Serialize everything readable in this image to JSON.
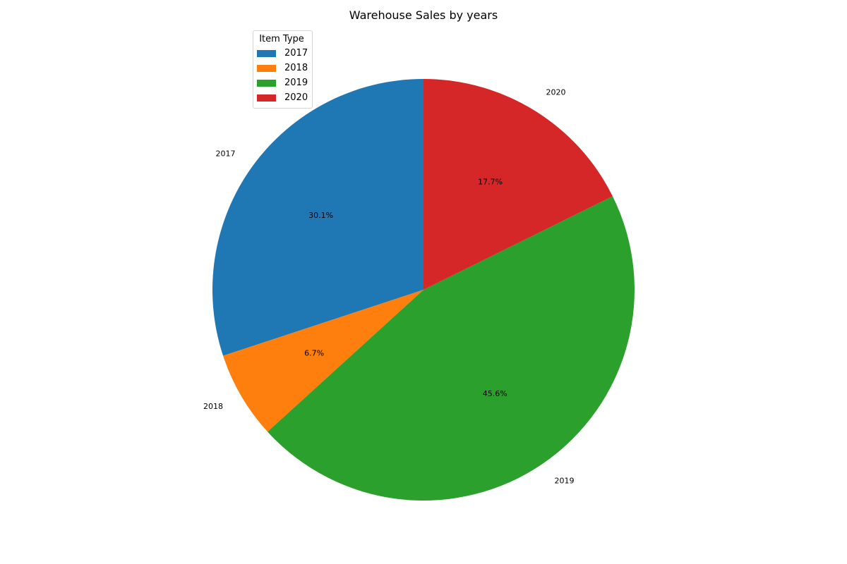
{
  "chart_data": {
    "type": "pie",
    "title": "Warehouse Sales  by years",
    "legend_title": "Item Type",
    "legend_position": "upper-left",
    "start_angle": 90,
    "direction": "counterclockwise",
    "slices": [
      {
        "label": "2017",
        "value": 30.1,
        "pct_label": "30.1%",
        "color": "#1f77b4"
      },
      {
        "label": "2018",
        "value": 6.7,
        "pct_label": "6.7%",
        "color": "#ff7f0e"
      },
      {
        "label": "2019",
        "value": 45.6,
        "pct_label": "45.6%",
        "color": "#2ca02c"
      },
      {
        "label": "2020",
        "value": 17.7,
        "pct_label": "17.7%",
        "color": "#d62728"
      }
    ]
  }
}
